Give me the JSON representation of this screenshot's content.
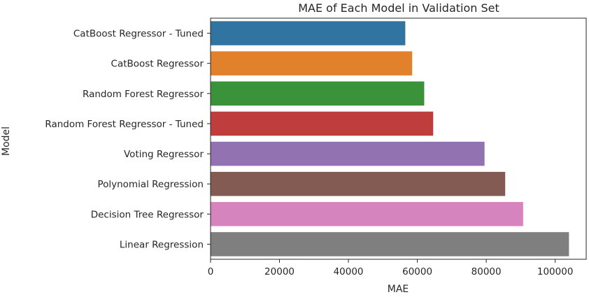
{
  "chart_data": {
    "type": "bar",
    "orientation": "horizontal",
    "title": "MAE of Each Model in Validation Set",
    "xlabel": "MAE",
    "ylabel": "Model",
    "categories": [
      "CatBoost Regressor - Tuned",
      "CatBoost Regressor",
      "Random Forest Regressor",
      "Random Forest Regressor - Tuned",
      "Voting Regressor",
      "Polynomial Regression",
      "Decision Tree Regressor",
      "Linear Regression"
    ],
    "values": [
      56500,
      58500,
      62000,
      64600,
      79500,
      85500,
      90700,
      104000
    ],
    "colors": [
      "#3274a1",
      "#e1812c",
      "#3a923a",
      "#c03d3e",
      "#9372b2",
      "#845b53",
      "#d684bd",
      "#7f7f7f"
    ],
    "xlim": [
      0,
      109000
    ],
    "xticks": [
      0,
      20000,
      40000,
      60000,
      80000,
      100000
    ],
    "grid": false,
    "legend": "none"
  }
}
